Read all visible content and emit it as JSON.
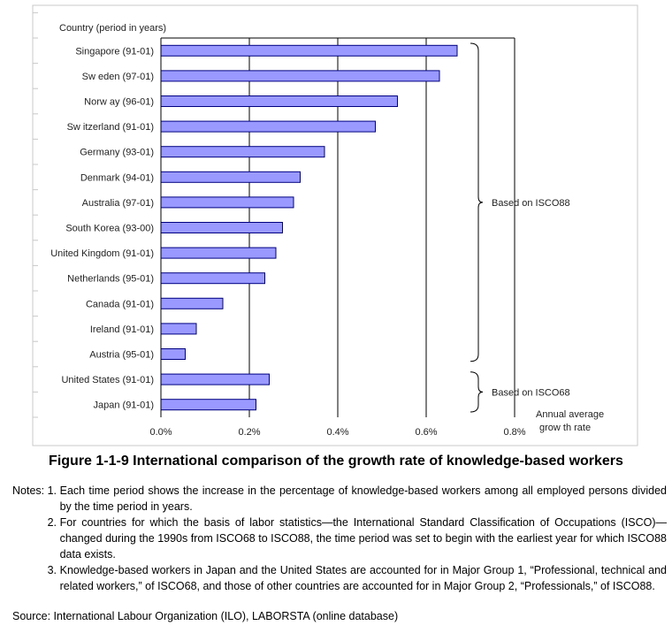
{
  "chart_data": {
    "type": "bar",
    "orientation": "horizontal",
    "category_header": "Country (period in years)",
    "categories": [
      "Singapore (91-01)",
      "Sw eden (97-01)",
      "Norw ay (96-01)",
      "Sw itzerland (91-01)",
      "Germany (93-01)",
      "Denmark (94-01)",
      "Australia (97-01)",
      "South Korea (93-00)",
      "United Kingdom (91-01)",
      "Netherlands (95-01)",
      "Canada (91-01)",
      "Ireland (91-01)",
      "Austria (95-01)",
      "United States (91-01)",
      "Japan (91-01)"
    ],
    "values": [
      0.67,
      0.63,
      0.535,
      0.485,
      0.37,
      0.315,
      0.3,
      0.275,
      0.26,
      0.235,
      0.14,
      0.08,
      0.055,
      0.245,
      0.215
    ],
    "x_ticks": [
      "0.0%",
      "0.2%",
      "0.4%",
      "0.6%",
      "0.8%"
    ],
    "xlim": [
      0,
      0.8
    ],
    "xlabel_line1": "Annual average",
    "xlabel_line2": "grow th rate",
    "grid": "vertical",
    "bar_color": "#9999ff",
    "bar_border": "#000080",
    "groups": [
      {
        "label": "Based on ISCO88",
        "from": 0,
        "to": 12
      },
      {
        "label": "Based on ISCO68",
        "from": 13,
        "to": 14
      }
    ]
  },
  "figure_title": "Figure 1-1-9  International comparison of the growth rate of knowledge-based workers",
  "notes_prefix": "Notes: ",
  "notes": [
    {
      "num": "1.",
      "text": "Each time period shows the increase in the percentage of knowledge-based workers among all employed persons divided by the time period in years."
    },
    {
      "num": "2.",
      "text": "For countries for which the basis of labor statistics—the International Standard Classification of Occupations (ISCO)—changed during the 1990s from ISCO68 to ISCO88, the time period was set to begin with the earliest year for which ISCO88 data exists."
    },
    {
      "num": "3.",
      "text": "Knowledge-based workers in Japan and the United States are accounted for in Major Group 1, “Professional, technical and related workers,” of ISCO68, and those of other countries are accounted for in Major Group 2, “Professionals,” of ISCO88."
    }
  ],
  "source": "Source: International Labour Organization (ILO), LABORSTA (online database)"
}
